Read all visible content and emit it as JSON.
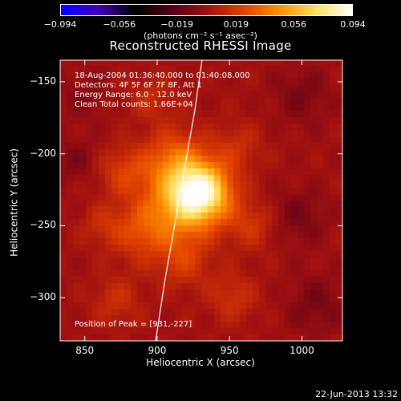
{
  "chart_data": {
    "type": "heatmap",
    "title": "Reconstructed RHESSI Image",
    "xlabel": "Heliocentric X (arcsec)",
    "ylabel": "Heliocentric Y (arcsec)",
    "xlim": [
      833,
      1028
    ],
    "ylim": [
      -330,
      -135
    ],
    "x_ticks": [
      850,
      900,
      950,
      1000
    ],
    "x_tick_labels": [
      "850",
      "900",
      "950",
      "1000"
    ],
    "y_ticks": [
      -150,
      -200,
      -250,
      -300
    ],
    "y_tick_labels": [
      "−150",
      "−200",
      "−250",
      "−300"
    ],
    "colorbar": {
      "range": [
        -0.094,
        0.094
      ],
      "ticks": [
        -0.094,
        -0.056,
        -0.019,
        0.019,
        0.056,
        0.094
      ],
      "tick_labels": [
        "−0.094",
        "−0.056",
        "−0.019",
        "0.019",
        "0.056",
        "0.094"
      ],
      "unit_label": "(photons cm⁻² s⁻¹ asec⁻²)",
      "colormap": [
        "#0000ff",
        "#4000c0",
        "#000000",
        "#500018",
        "#a01010",
        "#e04000",
        "#ff9000",
        "#ffe060",
        "#ffffff"
      ]
    },
    "annotations": [
      "18-Aug-2004 01:36:40.000 to 01:40:08.000",
      "Detectors: 4F 5F 6F 7F 8F, Att 1",
      "Energy Range: 6.0 - 12.0 keV",
      "Clean     Total counts: 1.66E+04",
      "Position of Peak = [931,-227]"
    ],
    "peak": {
      "x": 931,
      "y": -227,
      "value": 0.094
    },
    "sources": [
      {
        "x": 931,
        "y": -227,
        "amplitude": 0.075,
        "width": 14
      },
      {
        "x": 915,
        "y": -237,
        "amplitude": 0.04,
        "width": 18
      },
      {
        "x": 912,
        "y": -205,
        "amplitude": 0.032,
        "width": 15
      },
      {
        "x": 888,
        "y": -255,
        "amplitude": 0.022,
        "width": 14
      },
      {
        "x": 877,
        "y": -213,
        "amplitude": 0.02,
        "width": 12
      },
      {
        "x": 918,
        "y": -275,
        "amplitude": 0.018,
        "width": 13
      },
      {
        "x": 965,
        "y": -250,
        "amplitude": 0.017,
        "width": 12
      },
      {
        "x": 952,
        "y": -300,
        "amplitude": 0.015,
        "width": 12
      },
      {
        "x": 955,
        "y": -196,
        "amplitude": 0.014,
        "width": 12
      },
      {
        "x": 872,
        "y": -302,
        "amplitude": 0.014,
        "width": 12
      },
      {
        "x": 896,
        "y": -162,
        "amplitude": 0.012,
        "width": 11
      },
      {
        "x": 862,
        "y": -250,
        "amplitude": 0.012,
        "width": 10
      },
      {
        "x": 997,
        "y": -244,
        "amplitude": -0.012,
        "width": 14
      },
      {
        "x": 843,
        "y": -205,
        "amplitude": -0.01,
        "width": 11
      },
      {
        "x": 1010,
        "y": -305,
        "amplitude": -0.012,
        "width": 14
      },
      {
        "x": 1000,
        "y": -160,
        "amplitude": -0.011,
        "width": 14
      },
      {
        "x": 848,
        "y": -160,
        "amplitude": -0.008,
        "width": 12
      }
    ],
    "limb": [
      [
        899,
        -330
      ],
      [
        905,
        -290
      ],
      [
        912,
        -250
      ],
      [
        919,
        -210
      ],
      [
        926,
        -170
      ],
      [
        931,
        -135
      ]
    ]
  },
  "footer": {
    "timestamp": "22-Jun-2013 13:32"
  }
}
